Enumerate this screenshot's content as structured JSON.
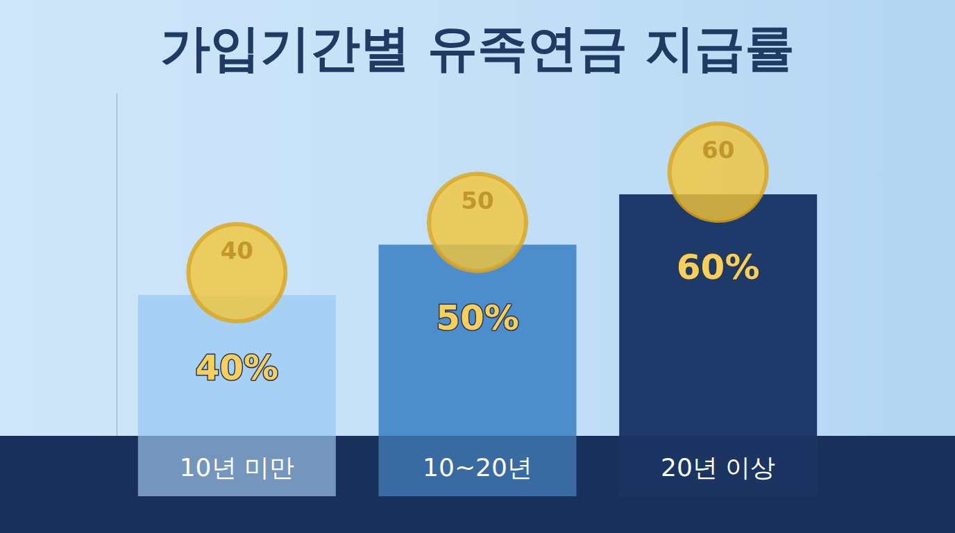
{
  "chart_data": {
    "type": "bar",
    "title": "가입기간별 유족연금 지급률",
    "categories": [
      "10년 미만",
      "10~20년",
      "20년 이상"
    ],
    "values": [
      40,
      50,
      60
    ],
    "value_labels": [
      "40%",
      "50%",
      "60%"
    ],
    "colors": [
      "#a6d0f6",
      "#4e8dcc",
      "#1e3a6b"
    ],
    "data_labels": true,
    "ylim": [
      0,
      80
    ],
    "tick_labels": false,
    "grid": false
  }
}
